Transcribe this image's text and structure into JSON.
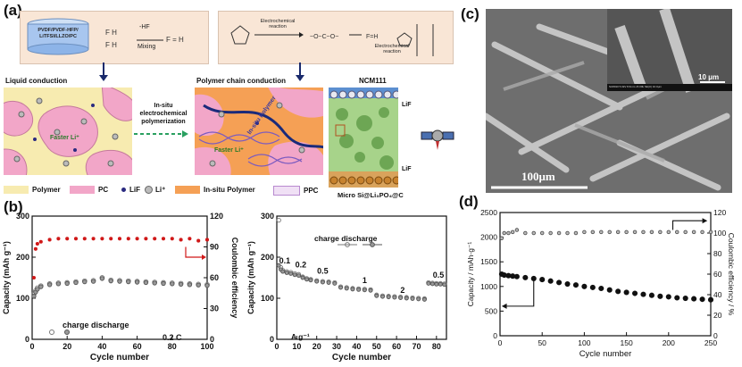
{
  "panels": {
    "a": {
      "label": "(a)",
      "solution_label": "PVDF/PVDF-HFP/\nLiTFSI/LLZO/PC",
      "mixing_label": "Mixing",
      "hf_label": "-HF",
      "electrochemical_reaction_1": "Electrochemical reaction",
      "electrochemical_reaction_2": "Electrochemical reaction",
      "liquid_conduction": "Liquid conduction",
      "polymer_chain_conduction": "Polymer chain conduction",
      "in_situ_label": "In-situ electrochemical polymerization",
      "faster_li_1": "Faster Li⁺",
      "faster_li_2": "Faster Li⁺",
      "in_situ_polymer_overlay": "In-situ Polymer",
      "ncm_label": "NCM111",
      "lif_top": "LiF",
      "lif_bottom": "LiF",
      "anode_label": "Micro Si@Li₃PO₄@C",
      "legend": [
        {
          "name": "Polymer",
          "color": "#f7ebb0"
        },
        {
          "name": "PC",
          "color": "#f2a6c8"
        },
        {
          "name": "LiF",
          "color": "#2a2a80"
        },
        {
          "name": "Li⁺",
          "color": "#bbbbbb"
        },
        {
          "name": "In-situ Polymer",
          "color": "#f5a055"
        },
        {
          "name": "PPC",
          "color": "#b88ad0"
        }
      ]
    },
    "b": {
      "label": "(b)",
      "left_legend": "charge discharge",
      "left_rate": "0.2 C",
      "right_legend": "charge discharge",
      "right_unit": "A g⁻¹",
      "rate_labels": [
        "0.1",
        "0.2",
        "0.5",
        "1",
        "2",
        "0.5"
      ]
    },
    "c": {
      "label": "(c)",
      "scale_main": "100μm",
      "scale_inset": "10 μm",
      "inset_info": "SU8010 5.0kV 8.6mm x5.00k SE(U) 10.0μm"
    },
    "d": {
      "label": "(d)"
    }
  },
  "chart_data": [
    {
      "type": "scatter",
      "panel": "b-left",
      "xlabel": "Cycle number",
      "ylabel": "Capacity (mAh g⁻¹)",
      "ylabel_right": "Coulombic efficiency",
      "xlim": [
        0,
        100
      ],
      "ylim": [
        0,
        300
      ],
      "ylim_right": [
        0,
        120
      ],
      "x_ticks": [
        0,
        20,
        40,
        60,
        80,
        100
      ],
      "y_ticks": [
        0,
        100,
        200,
        300
      ],
      "y_ticks_right": [
        0,
        30,
        60,
        90,
        120
      ],
      "series": [
        {
          "name": "charge",
          "x": [
            1,
            2,
            3,
            5,
            10,
            15,
            20,
            25,
            30,
            35,
            40,
            45,
            50,
            55,
            60,
            65,
            70,
            75,
            80,
            85,
            90,
            95,
            100
          ],
          "values": [
            110,
            118,
            125,
            130,
            135,
            137,
            138,
            140,
            142,
            143,
            150,
            144,
            143,
            142,
            141,
            140,
            139,
            138,
            137,
            136,
            135,
            134,
            133
          ]
        },
        {
          "name": "discharge",
          "x": [
            1,
            2,
            3,
            5,
            10,
            15,
            20,
            25,
            30,
            35,
            40,
            45,
            50,
            55,
            60,
            65,
            70,
            75,
            80,
            85,
            90,
            95,
            100
          ],
          "values": [
            105,
            115,
            122,
            128,
            133,
            135,
            136,
            138,
            140,
            141,
            148,
            142,
            141,
            140,
            139,
            138,
            137,
            136,
            135,
            134,
            133,
            132,
            131
          ]
        },
        {
          "name": "Coulombic efficiency",
          "x": [
            1,
            2,
            3,
            5,
            10,
            15,
            20,
            25,
            30,
            35,
            40,
            45,
            50,
            55,
            60,
            65,
            70,
            75,
            80,
            85,
            90,
            95,
            100
          ],
          "values_right": [
            60,
            88,
            93,
            95,
            97,
            98,
            98,
            98,
            98,
            98,
            98,
            98,
            98,
            98,
            98,
            98,
            98,
            98,
            98,
            97,
            98,
            96,
            97
          ]
        }
      ]
    },
    {
      "type": "scatter",
      "panel": "b-right",
      "xlabel": "Cycle number",
      "ylabel": "Capacity (mAh g⁻¹)",
      "xlim": [
        0,
        85
      ],
      "ylim": [
        0,
        300
      ],
      "x_ticks": [
        0,
        10,
        20,
        30,
        40,
        50,
        60,
        70,
        80
      ],
      "y_ticks": [
        0,
        100,
        200,
        300
      ],
      "series": [
        {
          "name": "charge",
          "x": [
            1,
            2,
            3,
            5,
            7,
            9,
            11,
            13,
            15,
            17,
            20,
            23,
            26,
            29,
            32,
            35,
            38,
            41,
            44,
            47,
            50,
            53,
            56,
            59,
            62,
            65,
            68,
            71,
            74,
            76,
            78,
            80,
            82,
            84
          ],
          "values": [
            290,
            175,
            168,
            165,
            163,
            160,
            158,
            152,
            148,
            146,
            143,
            141,
            140,
            138,
            128,
            126,
            124,
            123,
            122,
            121,
            108,
            106,
            105,
            104,
            103,
            102,
            101,
            100,
            99,
            138,
            137,
            136,
            136,
            135
          ]
        },
        {
          "name": "discharge",
          "x": [
            1,
            2,
            3,
            5,
            7,
            9,
            11,
            13,
            15,
            17,
            20,
            23,
            26,
            29,
            32,
            35,
            38,
            41,
            44,
            47,
            50,
            53,
            56,
            59,
            62,
            65,
            68,
            71,
            74,
            76,
            78,
            80,
            82,
            84
          ],
          "values": [
            180,
            170,
            165,
            162,
            160,
            157,
            155,
            150,
            146,
            144,
            141,
            139,
            138,
            136,
            126,
            124,
            122,
            121,
            120,
            119,
            106,
            104,
            103,
            102,
            101,
            100,
            99,
            98,
            97,
            136,
            135,
            134,
            134,
            133
          ]
        }
      ]
    },
    {
      "type": "scatter",
      "panel": "d",
      "xlabel": "Cycle number",
      "ylabel": "Capacity / mAh·g⁻¹",
      "ylabel_right": "Coulombic efficiency / %",
      "xlim": [
        0,
        250
      ],
      "ylim": [
        0,
        2500
      ],
      "ylim_right": [
        0,
        120
      ],
      "x_ticks": [
        0,
        50,
        100,
        150,
        200,
        250
      ],
      "y_ticks": [
        0,
        500,
        1000,
        1500,
        2000,
        2500
      ],
      "y_ticks_right": [
        0,
        20,
        40,
        60,
        80,
        100,
        120
      ],
      "series": [
        {
          "name": "capacity",
          "x": [
            2,
            5,
            10,
            15,
            20,
            30,
            40,
            50,
            60,
            70,
            80,
            90,
            100,
            110,
            120,
            130,
            140,
            150,
            160,
            170,
            180,
            190,
            200,
            210,
            220,
            230,
            240,
            250
          ],
          "values": [
            1250,
            1230,
            1220,
            1210,
            1200,
            1180,
            1160,
            1140,
            1110,
            1080,
            1050,
            1030,
            1000,
            980,
            960,
            930,
            900,
            880,
            860,
            840,
            820,
            800,
            790,
            770,
            760,
            750,
            740,
            730
          ]
        },
        {
          "name": "Coulombic efficiency",
          "x": [
            2,
            5,
            10,
            15,
            20,
            30,
            40,
            50,
            60,
            70,
            80,
            90,
            100,
            110,
            120,
            130,
            140,
            150,
            160,
            170,
            180,
            190,
            200,
            210,
            220,
            230,
            240,
            250
          ],
          "values_right": [
            95,
            100,
            100,
            101,
            103,
            100,
            100,
            100,
            100,
            100,
            100,
            100,
            101,
            101,
            101,
            101,
            101,
            101,
            101,
            101,
            101,
            101,
            101,
            101,
            101,
            101,
            101,
            101
          ]
        }
      ]
    }
  ]
}
